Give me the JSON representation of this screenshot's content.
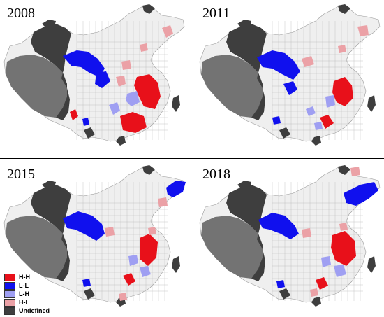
{
  "colors": {
    "HH": "#e8101a",
    "LL": "#1010ee",
    "LH": "#9f9ff2",
    "HL": "#eba1a6",
    "undefined": "#3e3e3e",
    "tibet": "#737373",
    "notSignificant": "#efefef",
    "borders": "#b9b9b9"
  },
  "panels": [
    {
      "year": "2008"
    },
    {
      "year": "2011"
    },
    {
      "year": "2015"
    },
    {
      "year": "2018"
    }
  ],
  "legend": [
    {
      "label": "H-H",
      "color": "#e8101a"
    },
    {
      "label": "L-L",
      "color": "#1010ee"
    },
    {
      "label": "L-H",
      "color": "#9f9ff2"
    },
    {
      "label": "H-L",
      "color": "#eba1a6"
    },
    {
      "label": "Undefined",
      "color": "#3e3e3e"
    }
  ]
}
